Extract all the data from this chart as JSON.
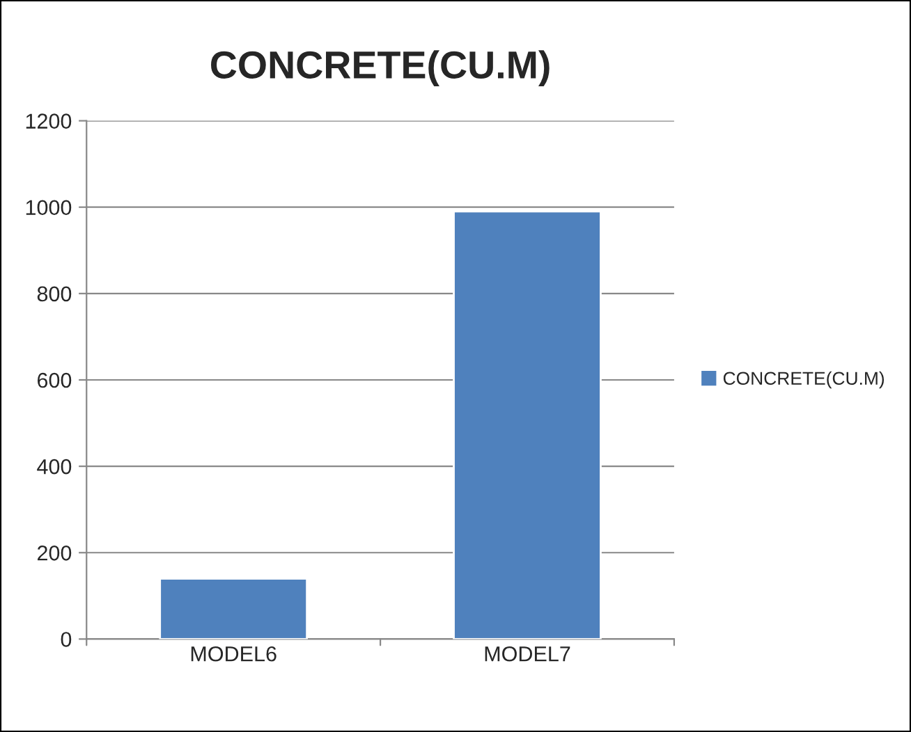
{
  "chart_data": {
    "type": "bar",
    "title": "CONCRETE(CU.M)",
    "categories": [
      "MODEL6",
      "MODEL7"
    ],
    "series": [
      {
        "name": "CONCRETE(CU.M)",
        "color": "#4f81bd",
        "values": [
          140,
          990
        ]
      }
    ],
    "ylim": [
      0,
      1200
    ],
    "yticks": [
      0,
      200,
      400,
      600,
      800,
      1000,
      1200
    ],
    "grid": "y",
    "legend": "right"
  }
}
